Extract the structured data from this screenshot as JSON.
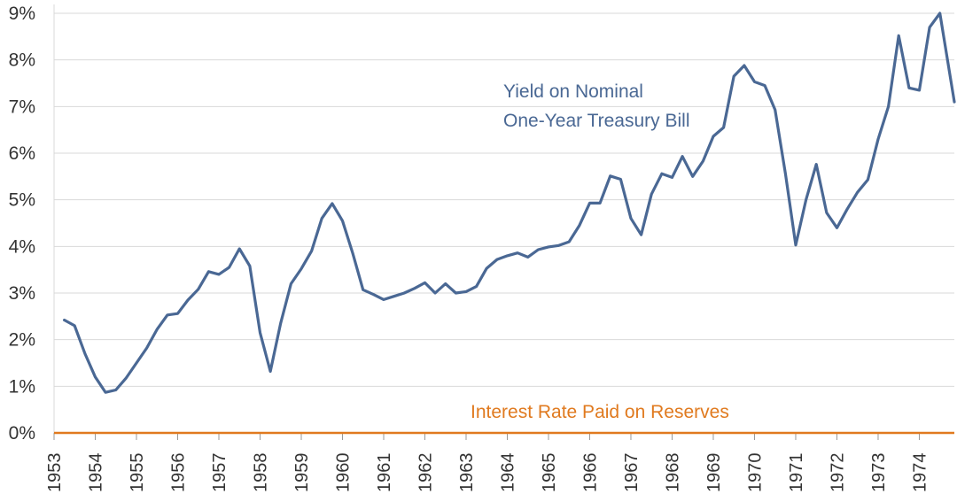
{
  "chart_data": {
    "type": "line",
    "title": "",
    "xlabel": "",
    "ylabel": "",
    "xlim": [
      1953.0,
      1974.85
    ],
    "ylim": [
      0,
      9
    ],
    "grid": "horizontal",
    "y_ticks": [
      "0%",
      "1%",
      "2%",
      "3%",
      "4%",
      "5%",
      "6%",
      "7%",
      "8%",
      "9%"
    ],
    "x_ticks": [
      "1953",
      "1954",
      "1955",
      "1956",
      "1957",
      "1958",
      "1959",
      "1960",
      "1961",
      "1962",
      "1963",
      "1964",
      "1965",
      "1966",
      "1967",
      "1968",
      "1969",
      "1970",
      "1971",
      "1972",
      "1973",
      "1974"
    ],
    "colors": {
      "yield": "#4a6894",
      "reserves": "#e07a1f",
      "grid": "#d9d9d9",
      "axis": "#999999"
    },
    "series": [
      {
        "name": "Yield on Nominal One-Year Treasury Bill",
        "label_lines": [
          "Yield on Nominal",
          "One-Year Treasury Bill"
        ],
        "points": [
          [
            1953.25,
            2.42
          ],
          [
            1953.5,
            2.3
          ],
          [
            1953.75,
            1.7
          ],
          [
            1954.0,
            1.2
          ],
          [
            1954.25,
            0.87
          ],
          [
            1954.5,
            0.92
          ],
          [
            1954.75,
            1.18
          ],
          [
            1955.0,
            1.5
          ],
          [
            1955.25,
            1.82
          ],
          [
            1955.5,
            2.22
          ],
          [
            1955.75,
            2.53
          ],
          [
            1956.0,
            2.56
          ],
          [
            1956.25,
            2.85
          ],
          [
            1956.5,
            3.08
          ],
          [
            1956.75,
            3.46
          ],
          [
            1957.0,
            3.4
          ],
          [
            1957.25,
            3.55
          ],
          [
            1957.5,
            3.95
          ],
          [
            1957.75,
            3.58
          ],
          [
            1958.0,
            2.15
          ],
          [
            1958.25,
            1.32
          ],
          [
            1958.5,
            2.35
          ],
          [
            1958.75,
            3.2
          ],
          [
            1959.0,
            3.52
          ],
          [
            1959.25,
            3.9
          ],
          [
            1959.5,
            4.6
          ],
          [
            1959.75,
            4.92
          ],
          [
            1960.0,
            4.55
          ],
          [
            1960.25,
            3.85
          ],
          [
            1960.5,
            3.07
          ],
          [
            1960.75,
            2.97
          ],
          [
            1961.0,
            2.86
          ],
          [
            1961.25,
            2.93
          ],
          [
            1961.5,
            3.0
          ],
          [
            1961.75,
            3.1
          ],
          [
            1962.0,
            3.22
          ],
          [
            1962.25,
            3.0
          ],
          [
            1962.5,
            3.2
          ],
          [
            1962.75,
            3.0
          ],
          [
            1963.0,
            3.03
          ],
          [
            1963.25,
            3.14
          ],
          [
            1963.5,
            3.53
          ],
          [
            1963.75,
            3.72
          ],
          [
            1964.0,
            3.8
          ],
          [
            1964.25,
            3.86
          ],
          [
            1964.5,
            3.77
          ],
          [
            1964.75,
            3.93
          ],
          [
            1965.0,
            3.99
          ],
          [
            1965.25,
            4.02
          ],
          [
            1965.5,
            4.1
          ],
          [
            1965.75,
            4.45
          ],
          [
            1966.0,
            4.93
          ],
          [
            1966.25,
            4.93
          ],
          [
            1966.5,
            5.51
          ],
          [
            1966.75,
            5.44
          ],
          [
            1967.0,
            4.6
          ],
          [
            1967.25,
            4.25
          ],
          [
            1967.5,
            5.12
          ],
          [
            1967.75,
            5.56
          ],
          [
            1968.0,
            5.48
          ],
          [
            1968.25,
            5.93
          ],
          [
            1968.5,
            5.5
          ],
          [
            1968.75,
            5.83
          ],
          [
            1969.0,
            6.36
          ],
          [
            1969.25,
            6.55
          ],
          [
            1969.5,
            7.65
          ],
          [
            1969.75,
            7.88
          ],
          [
            1970.0,
            7.53
          ],
          [
            1970.25,
            7.45
          ],
          [
            1970.5,
            6.93
          ],
          [
            1970.75,
            5.56
          ],
          [
            1971.0,
            4.03
          ],
          [
            1971.25,
            5.0
          ],
          [
            1971.5,
            5.76
          ],
          [
            1971.75,
            4.72
          ],
          [
            1972.0,
            4.4
          ],
          [
            1972.25,
            4.8
          ],
          [
            1972.5,
            5.16
          ],
          [
            1972.75,
            5.43
          ],
          [
            1973.0,
            6.3
          ],
          [
            1973.25,
            7.0
          ],
          [
            1973.5,
            8.52
          ],
          [
            1973.75,
            7.4
          ],
          [
            1974.0,
            7.35
          ],
          [
            1974.25,
            8.7
          ],
          [
            1974.5,
            9.0
          ],
          [
            1974.85,
            7.1
          ]
        ]
      },
      {
        "name": "Interest Rate Paid on Reserves",
        "label_lines": [
          "Interest Rate Paid on Reserves"
        ],
        "points": [
          [
            1953.0,
            0
          ],
          [
            1974.85,
            0
          ]
        ]
      }
    ]
  }
}
